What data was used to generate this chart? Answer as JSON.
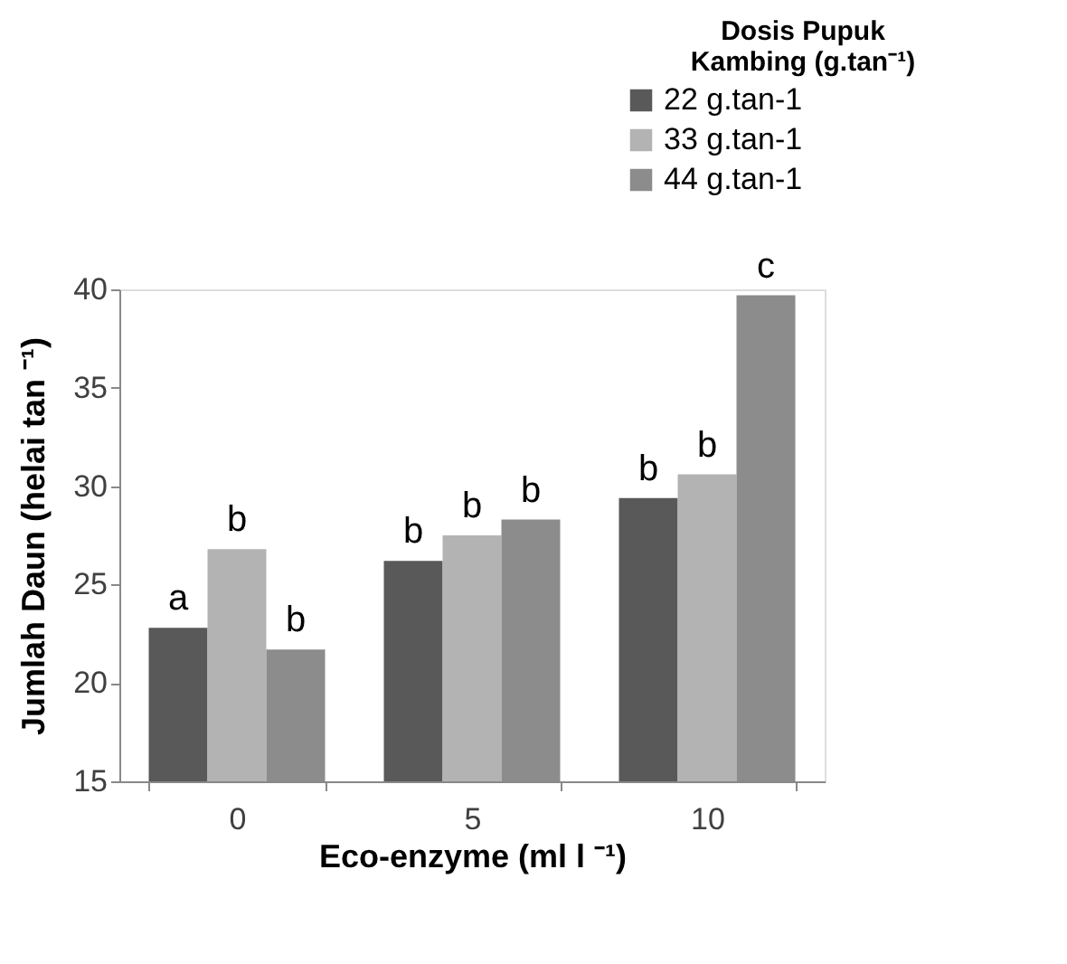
{
  "chart_data": {
    "type": "bar",
    "xlabel": "Eco-enzyme (ml l ⁻¹)",
    "ylabel": "Jumlah Daun (helai tan ⁻¹)",
    "legend_title": "Dosis Pupuk Kambing (g.tan⁻¹)",
    "categories": [
      "0",
      "5",
      "10"
    ],
    "series": [
      {
        "name": "22 g.tan-1",
        "color": "#595959",
        "values": [
          22.8,
          26.2,
          29.4
        ],
        "value_labels": [
          "a",
          "b",
          "b"
        ]
      },
      {
        "name": "33 g.tan-1",
        "color": "#b3b3b3",
        "values": [
          26.8,
          27.5,
          30.6
        ],
        "value_labels": [
          "b",
          "b",
          "b"
        ]
      },
      {
        "name": "44 g.tan-1",
        "color": "#8c8c8c",
        "values": [
          21.7,
          28.3,
          39.7
        ],
        "value_labels": [
          "b",
          "b",
          "c"
        ]
      }
    ],
    "ylim": [
      15,
      40
    ],
    "yticks": [
      15,
      20,
      25,
      30,
      35,
      40
    ],
    "grid": false,
    "legend": "top right"
  }
}
